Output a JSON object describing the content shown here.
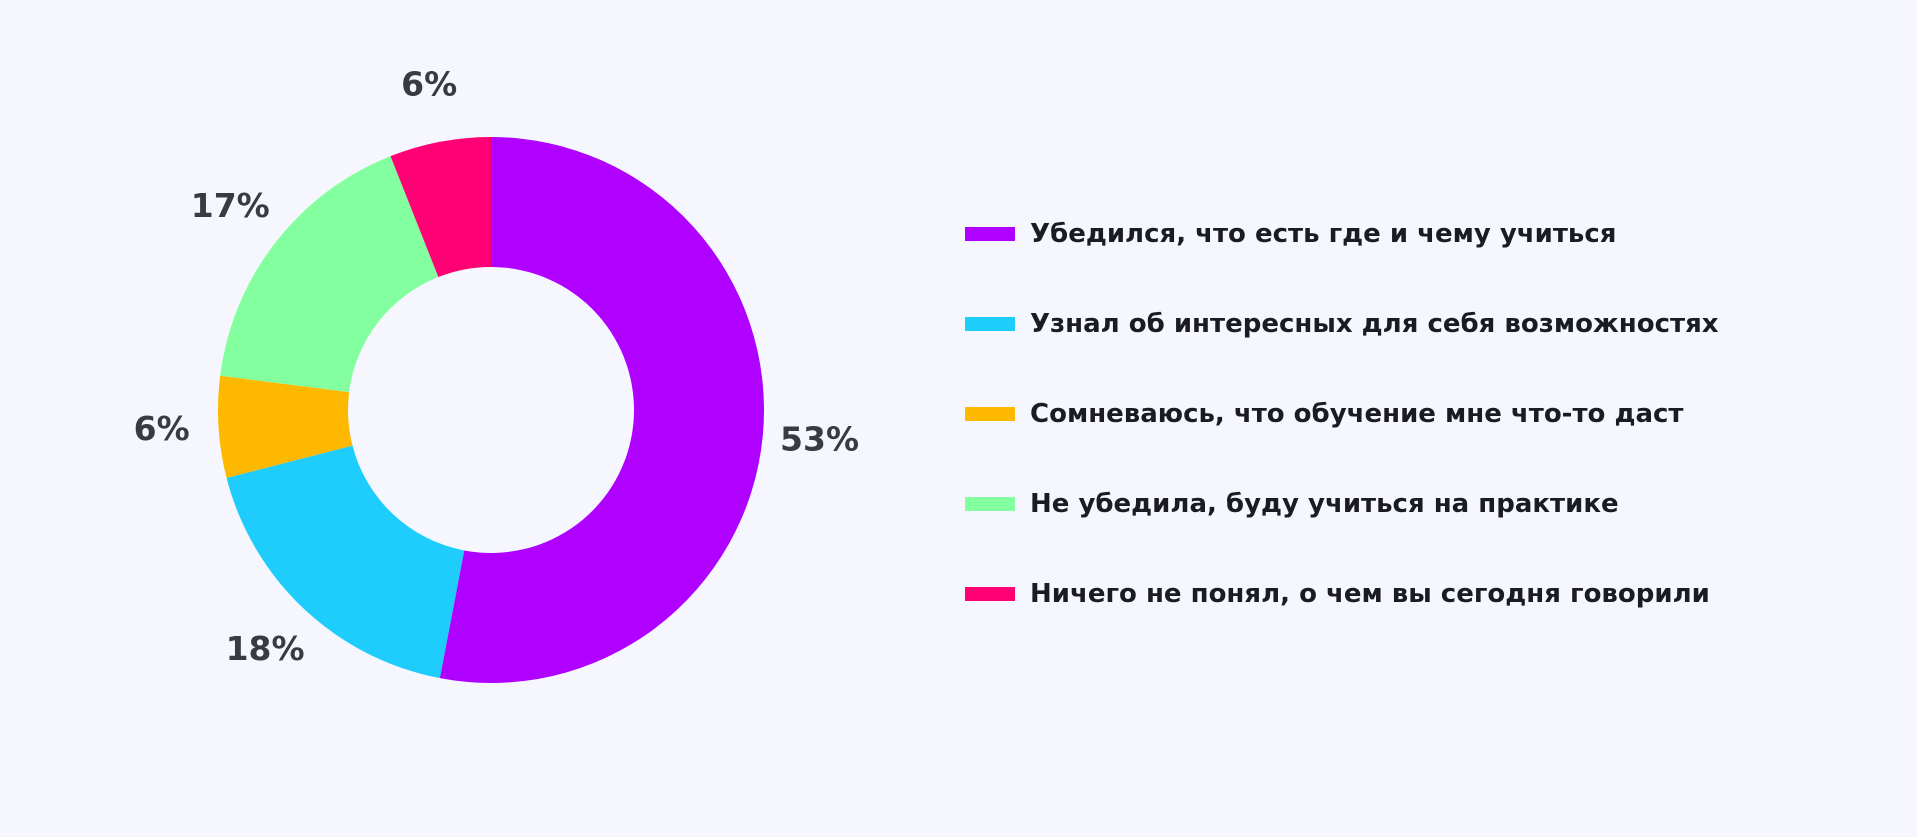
{
  "chart_data": {
    "type": "pie",
    "variant": "donut",
    "title": "",
    "slices": [
      {
        "label": "Убедился, что есть где и чему учиться",
        "value": 53,
        "value_label": "53%",
        "color": "#b000ff"
      },
      {
        "label": "Узнал об интересных для себя возможностях",
        "value": 18,
        "value_label": "18%",
        "color": "#1ecdfc"
      },
      {
        "label": "Сомневаюсь, что обучение мне что-то даст",
        "value": 6,
        "value_label": "6%",
        "color": "#ffb800"
      },
      {
        "label": "Не убедила, буду учиться на практике",
        "value": 17,
        "value_label": "17%",
        "color": "#83ff9f"
      },
      {
        "label": "Ничего не понял, о чем вы сегодня говорили",
        "value": 6,
        "value_label": "6%",
        "color": "#ff0075"
      }
    ],
    "legend_position": "right",
    "start_angle": "12 o'clock",
    "direction": "clockwise"
  }
}
